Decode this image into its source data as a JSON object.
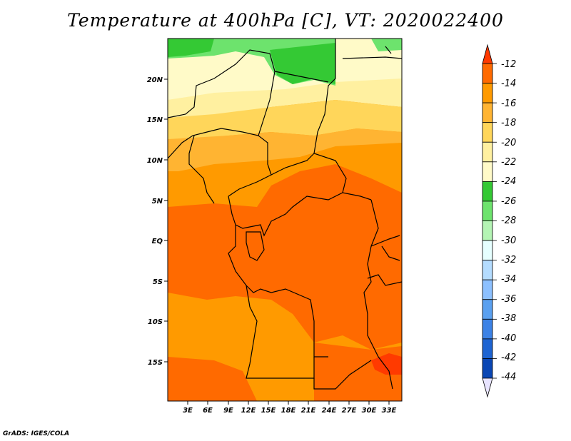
{
  "title": "Temperature at 400hPa [C], VT: 2020022400",
  "credit": "GrADS: IGES/COLA",
  "map": {
    "lat_labels": [
      "20N",
      "15N",
      "10N",
      "5N",
      "EQ",
      "5S",
      "10S",
      "15S"
    ],
    "lon_labels": [
      "3E",
      "6E",
      "9E",
      "12E",
      "15E",
      "18E",
      "21E",
      "24E",
      "27E",
      "30E",
      "33E"
    ]
  },
  "colorbar": {
    "labels": [
      "-12",
      "-14",
      "-16",
      "-18",
      "-20",
      "-22",
      "-24",
      "-26",
      "-28",
      "-30",
      "-32",
      "-34",
      "-36",
      "-38",
      "-40",
      "-42",
      "-44"
    ],
    "colors": [
      "#ff3a00",
      "#ff6a00",
      "#ff9a00",
      "#ffb432",
      "#ffd65a",
      "#fff0a0",
      "#fffac8",
      "#34c934",
      "#6de36d",
      "#b4f4b4",
      "#e6ffff",
      "#b4dcff",
      "#8cc0ff",
      "#5aa0f0",
      "#3c82e6",
      "#1e64d2",
      "#0a46b4",
      "#0a148c"
    ]
  }
}
